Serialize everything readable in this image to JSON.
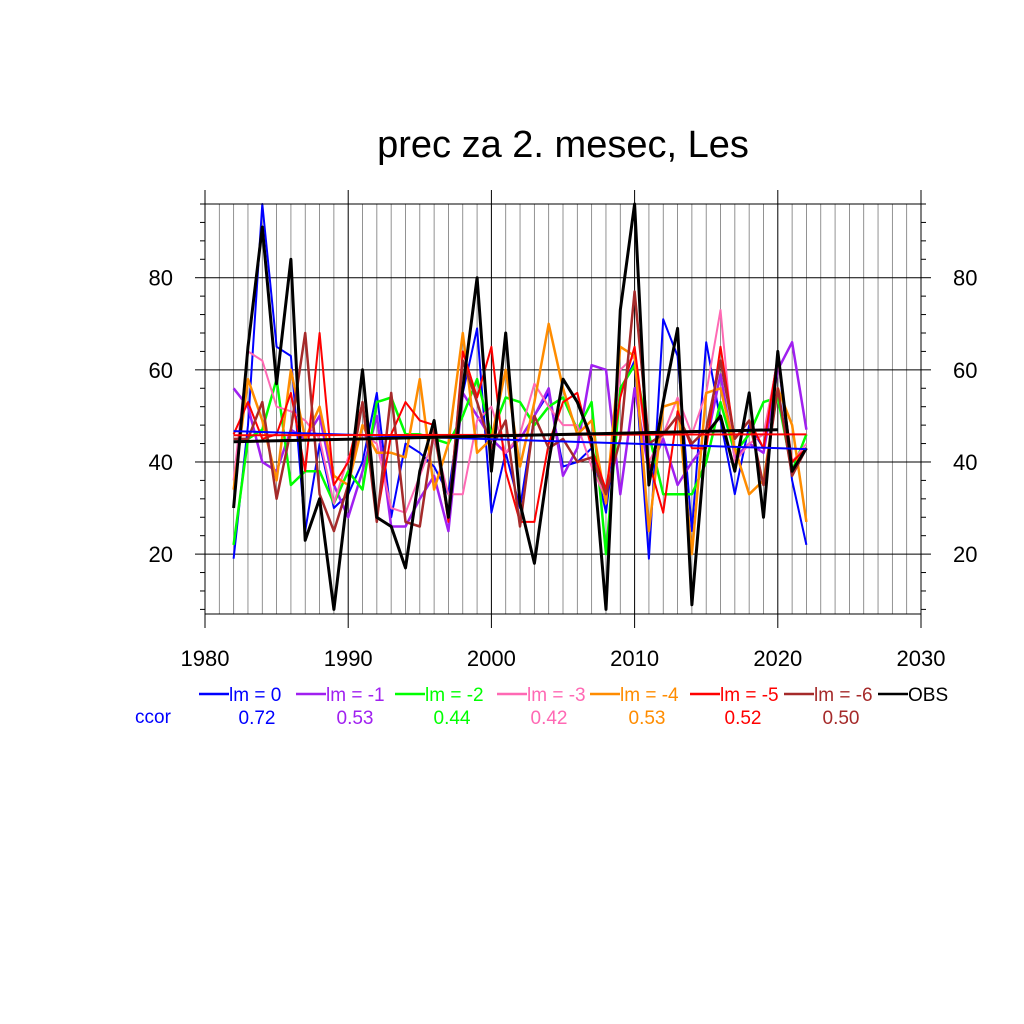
{
  "chart_data": {
    "type": "line",
    "title": "prec za 2. mesec, Les",
    "xlabel": "",
    "ylabel": "",
    "xlim": [
      1980,
      2030
    ],
    "ylim": [
      7,
      96
    ],
    "xticks": [
      1980,
      1990,
      2000,
      2010,
      2020,
      2030
    ],
    "yticks": [
      20,
      40,
      60,
      80
    ],
    "grid": true,
    "legend_position": "below",
    "x": [
      1982,
      1983,
      1984,
      1985,
      1986,
      1987,
      1988,
      1989,
      1990,
      1991,
      1992,
      1993,
      1994,
      1995,
      1996,
      1997,
      1998,
      1999,
      2000,
      2001,
      2002,
      2003,
      2004,
      2005,
      2006,
      2007,
      2008,
      2009,
      2010,
      2011,
      2012,
      2013,
      2014,
      2015,
      2016,
      2017,
      2018,
      2019,
      2020,
      2021,
      2022
    ],
    "series": [
      {
        "name": "lm = 0",
        "color": "#0000ff",
        "width": 2,
        "values": [
          19,
          48,
          96,
          65,
          63,
          25,
          44,
          30,
          33,
          40,
          55,
          28,
          44,
          42,
          39,
          33,
          55,
          69,
          29,
          42,
          30,
          50,
          55,
          39,
          40,
          43,
          29,
          55,
          62,
          19,
          71,
          63,
          25,
          66,
          49,
          33,
          48,
          43,
          63,
          36,
          22
        ],
        "trend": [
          46.7,
          42.8
        ]
      },
      {
        "name": "lm = -1",
        "color": "#a020f0",
        "width": 2.5,
        "values": [
          56,
          52,
          40,
          38,
          47,
          45,
          50,
          35,
          28,
          38,
          50,
          26,
          26,
          32,
          37,
          25,
          55,
          50,
          45,
          42,
          45,
          50,
          56,
          37,
          43,
          61,
          60,
          33,
          56,
          38,
          45,
          35,
          40,
          44,
          59,
          41,
          44,
          42,
          60,
          66,
          47
        ]
      },
      {
        "name": "lm = -2",
        "color": "#00ff00",
        "width": 2.5,
        "values": [
          22,
          45,
          47,
          58,
          35,
          38,
          38,
          31,
          38,
          34,
          53,
          54,
          46,
          46,
          45,
          44,
          50,
          58,
          46,
          54,
          53,
          48,
          52,
          54,
          47,
          53,
          20,
          56,
          61,
          46,
          33,
          33,
          33,
          40,
          53,
          42,
          46,
          53,
          54,
          38,
          46
        ]
      },
      {
        "name": "lm = -3",
        "color": "#ff69b4",
        "width": 2,
        "values": [
          36,
          64,
          62,
          52,
          51,
          49,
          45,
          31,
          41,
          46,
          44,
          30,
          29,
          37,
          45,
          33,
          33,
          49,
          52,
          42,
          46,
          57,
          52,
          48,
          48,
          39,
          32,
          60,
          63,
          40,
          46,
          54,
          46,
          55,
          73,
          40,
          44,
          46,
          62,
          40,
          44
        ]
      },
      {
        "name": "lm = -4",
        "color": "#ff8c00",
        "width": 2.5,
        "values": [
          34,
          58,
          49,
          36,
          60,
          45,
          52,
          37,
          35,
          48,
          42,
          42,
          41,
          58,
          34,
          44,
          68,
          42,
          45,
          60,
          39,
          53,
          70,
          56,
          46,
          49,
          31,
          65,
          63,
          25,
          52,
          53,
          20,
          55,
          56,
          43,
          33,
          36,
          56,
          48,
          27
        ]
      },
      {
        "name": "lm = -5",
        "color": "#ff0000",
        "width": 2,
        "values": [
          46,
          53,
          45,
          46,
          55,
          38,
          68,
          35,
          40,
          53,
          28,
          46,
          53,
          49,
          48,
          27,
          64,
          54,
          65,
          38,
          27,
          27,
          44,
          53,
          55,
          43,
          34,
          54,
          65,
          40,
          29,
          51,
          43,
          43,
          65,
          45,
          49,
          43,
          63,
          40,
          43
        ],
        "trend": [
          45.8,
          46.0
        ]
      },
      {
        "name": "lm = -6",
        "color": "#a52a2a",
        "width": 2.5,
        "values": [
          45,
          45,
          53,
          32,
          47,
          68,
          33,
          25,
          35,
          53,
          27,
          55,
          27,
          26,
          47,
          28,
          62,
          53,
          43,
          49,
          26,
          50,
          43,
          45,
          40,
          41,
          33,
          45,
          77,
          44,
          46,
          50,
          44,
          47,
          62,
          45,
          49,
          35,
          56,
          37,
          43
        ]
      },
      {
        "name": "OBS",
        "color": "#000000",
        "width": 3,
        "values": [
          30,
          65,
          91,
          57,
          84,
          23,
          32,
          8,
          34,
          60,
          28,
          26,
          17,
          38,
          49,
          28,
          56,
          80,
          38,
          68,
          31,
          18,
          40,
          58,
          53,
          45,
          8,
          73,
          96,
          35,
          53,
          69,
          9,
          46,
          50,
          38,
          55,
          28,
          64,
          38,
          43
        ],
        "trend": [
          44.4,
          47.0
        ]
      }
    ],
    "ccor_label": "ccor",
    "ccor_values": [
      "0.72",
      "0.53",
      "0.44",
      "0.42",
      "0.53",
      "0.52",
      "0.50"
    ]
  }
}
